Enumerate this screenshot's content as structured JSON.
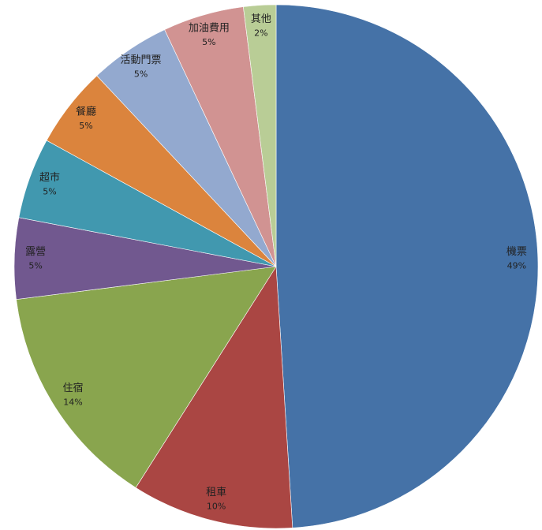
{
  "chart_data": {
    "type": "pie",
    "categories": [
      "機票",
      "租車",
      "住宿",
      "露營",
      "超市",
      "餐廳",
      "活動門票",
      "加油費用",
      "其他"
    ],
    "values": [
      49,
      10,
      14,
      5,
      5,
      5,
      5,
      5,
      2
    ],
    "value_labels": [
      "49%",
      "10%",
      "14%",
      "5%",
      "5%",
      "5%",
      "5%",
      "5%",
      "2%"
    ],
    "colors": [
      "#4572a7",
      "#aa4643",
      "#89a54e",
      "#71588f",
      "#4198af",
      "#db843d",
      "#93a9cf",
      "#d19392",
      "#b9cd96"
    ]
  }
}
